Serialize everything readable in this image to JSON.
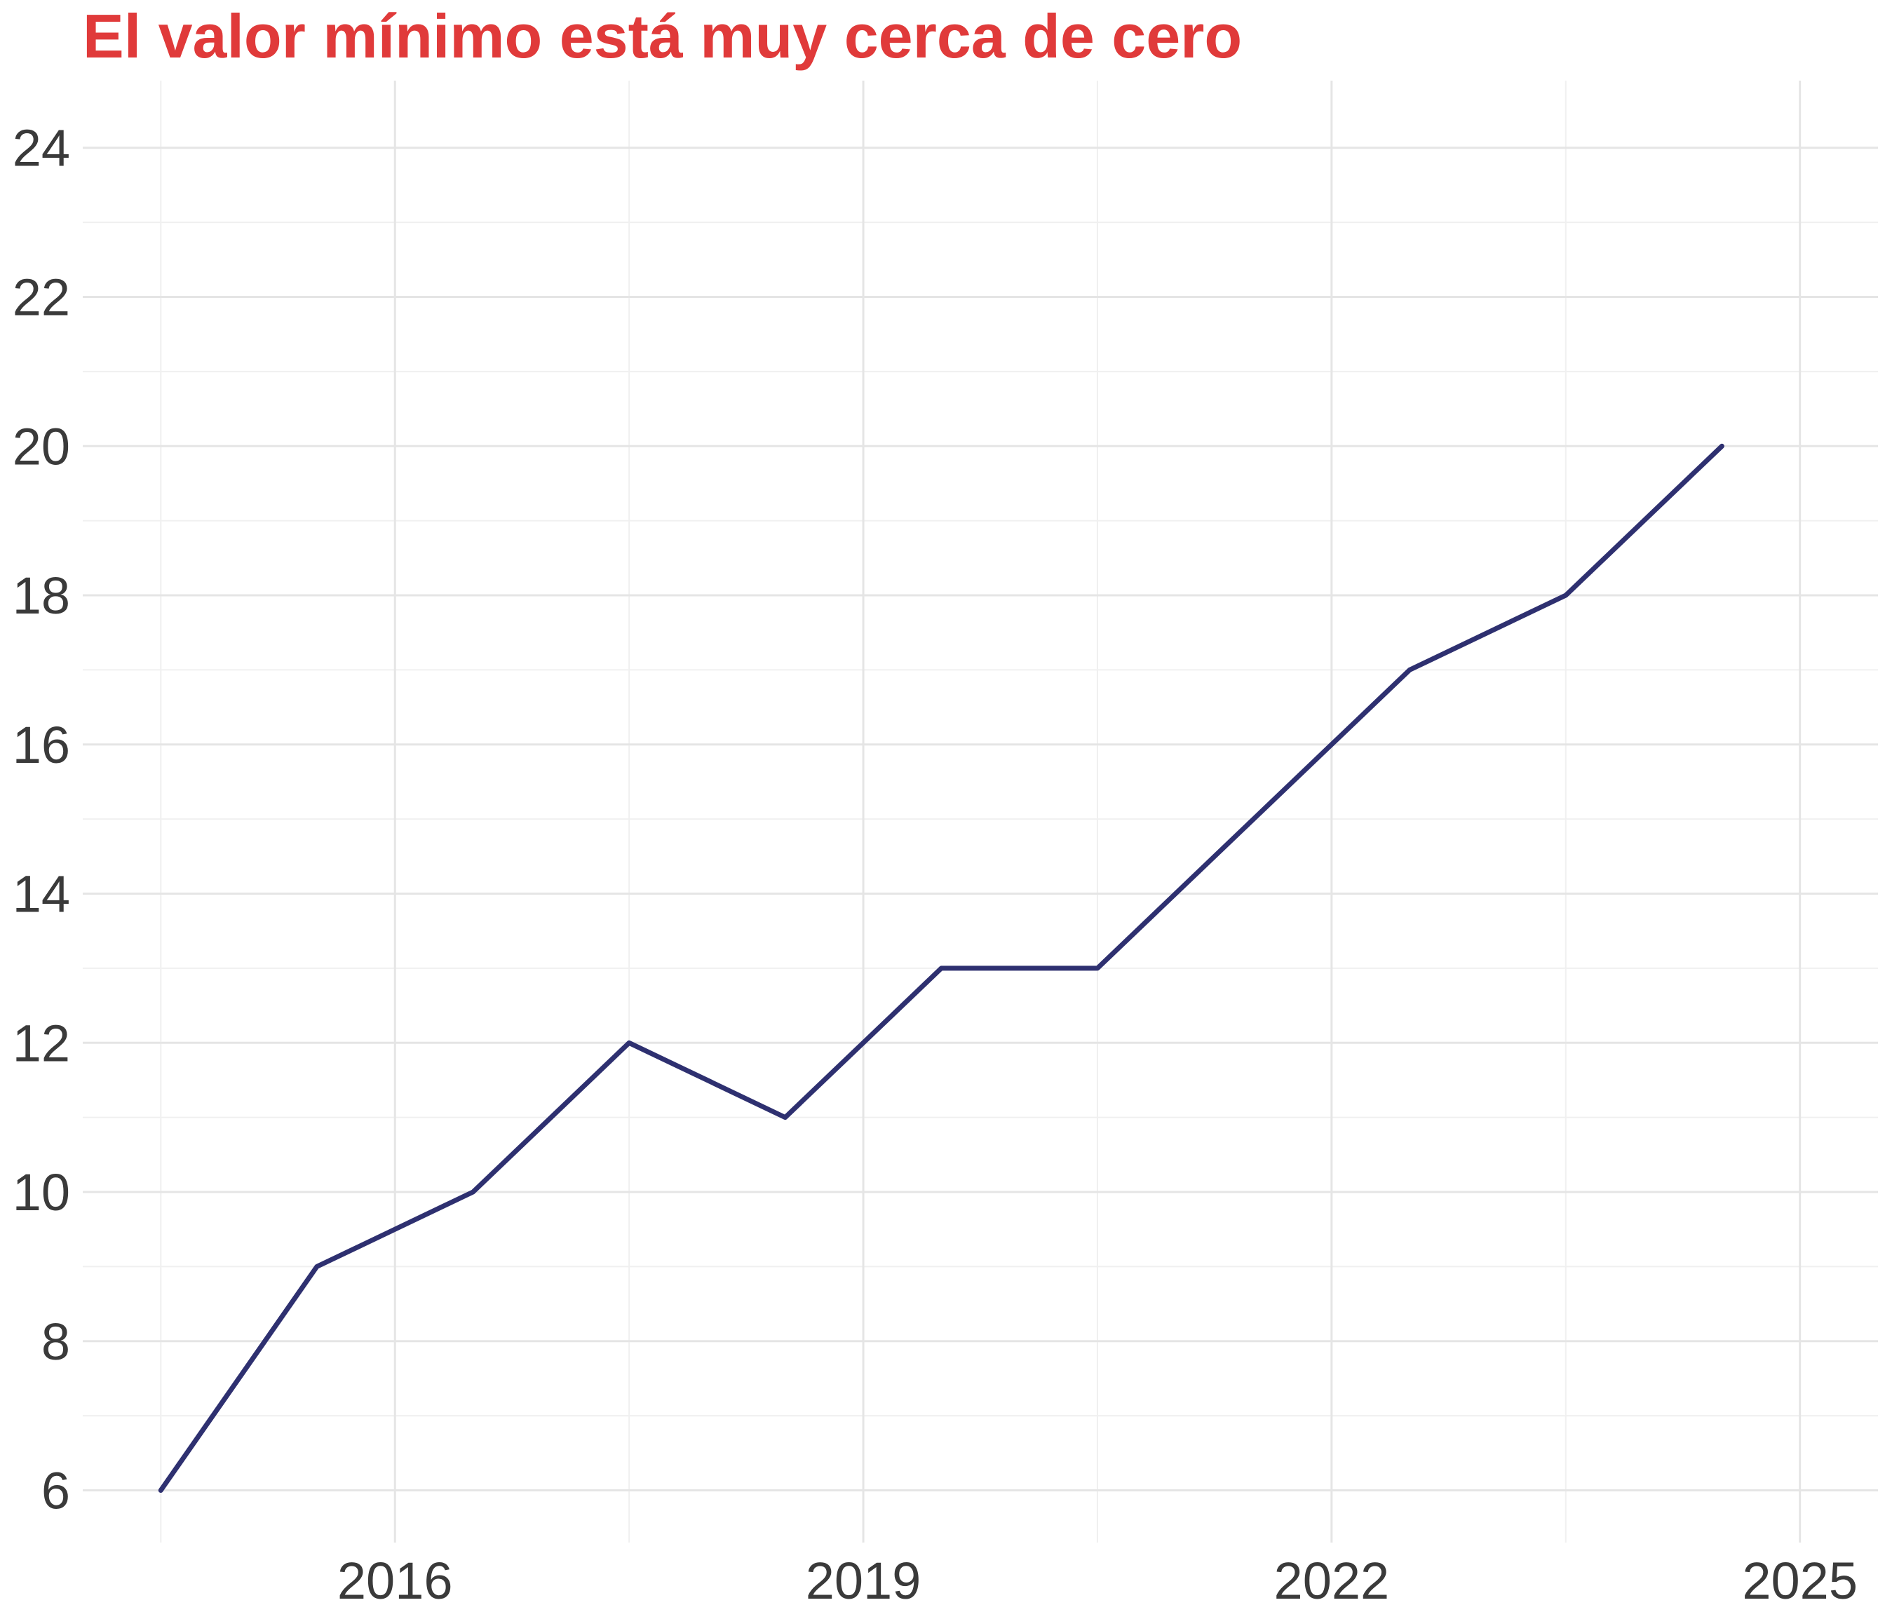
{
  "chart_data": {
    "type": "line",
    "title": "El valor mínimo está muy cerca de cero",
    "subtitle": "",
    "xlabel": "",
    "ylabel": "",
    "x": [
      2014.5,
      2015.5,
      2016.5,
      2017.5,
      2018.5,
      2019.5,
      2020.5,
      2021.5,
      2022.5,
      2023.5,
      2024.5
    ],
    "series": [
      {
        "values": [
          6,
          9,
          10,
          12,
          11,
          13,
          13,
          15,
          17,
          18,
          20
        ]
      }
    ],
    "x_ticks": [
      2016,
      2019,
      2022,
      2025
    ],
    "y_ticks": [
      6,
      8,
      10,
      12,
      14,
      16,
      18,
      20,
      22,
      24
    ],
    "xlim": [
      2014.0,
      2025.5
    ],
    "ylim": [
      5.3,
      24.9
    ],
    "grid": true,
    "legend": "none",
    "colors": {
      "title": "#e03a3a",
      "line": "#2e3070",
      "grid_major": "#e5e5e5",
      "grid_minor": "#f0f0f0",
      "tick_text": "#3a3a3a"
    }
  }
}
